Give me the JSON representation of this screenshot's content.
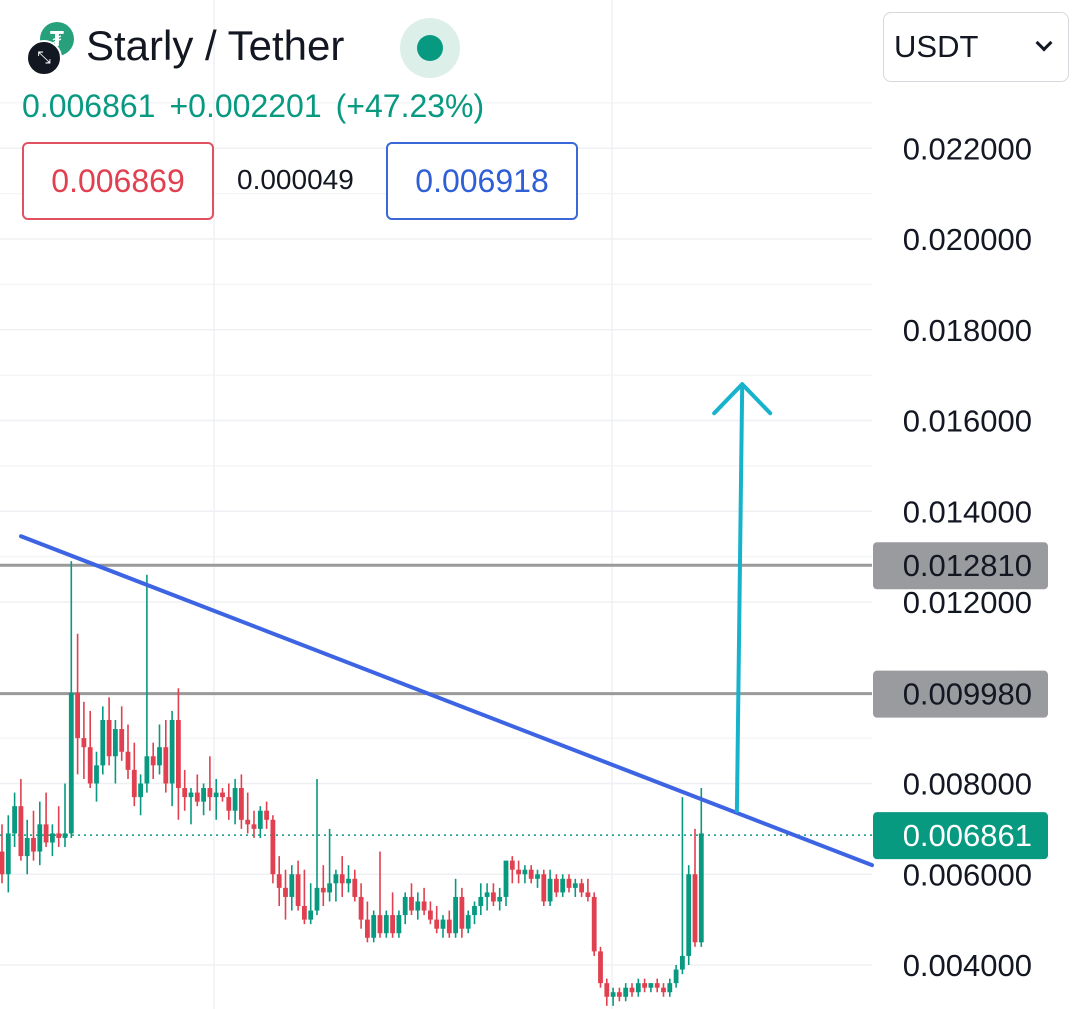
{
  "header": {
    "title": "Starly / Tether",
    "last_price": "0.006861",
    "change_abs": "+0.002201",
    "change_pct": "(+47.23%)",
    "bid": "0.006869",
    "spread": "0.000049",
    "ask": "0.006918",
    "currency": "USDT"
  },
  "colors": {
    "up": "#089981",
    "down": "#e0404f",
    "trendline": "#3d64e3",
    "arrow": "#17b2cc",
    "level": "#9a9a9a"
  },
  "chart_data": {
    "type": "candlestick",
    "y_axis": {
      "min": 0.003,
      "max": 0.0233,
      "ticks": [
        "0.004000",
        "0.006000",
        "0.008000",
        "0.012000",
        "0.014000",
        "0.016000",
        "0.018000",
        "0.020000",
        "0.022000"
      ]
    },
    "horizontal_levels": [
      {
        "label": "0.012810",
        "value": 0.01281
      },
      {
        "label": "0.009980",
        "value": 0.00998
      }
    ],
    "last_price_label": "0.006861",
    "last_price_value": 0.006861,
    "trendline": {
      "from": [
        0,
        0.01345
      ],
      "to": [
        120,
        0.0062
      ]
    },
    "arrow": {
      "from": [
        103,
        0.0074
      ],
      "to": [
        104,
        0.0168
      ]
    },
    "candles": [
      [
        0.0065,
        0.0071,
        0.0058,
        0.006
      ],
      [
        0.006,
        0.0073,
        0.0056,
        0.0069
      ],
      [
        0.0069,
        0.0078,
        0.0066,
        0.0075
      ],
      [
        0.0075,
        0.0081,
        0.0063,
        0.0064
      ],
      [
        0.0064,
        0.0072,
        0.006,
        0.0068
      ],
      [
        0.0068,
        0.0074,
        0.0063,
        0.0065
      ],
      [
        0.0065,
        0.0076,
        0.0062,
        0.0071
      ],
      [
        0.0071,
        0.0078,
        0.0066,
        0.0067
      ],
      [
        0.0067,
        0.0071,
        0.0064,
        0.0069
      ],
      [
        0.0069,
        0.0075,
        0.0066,
        0.0068
      ],
      [
        0.0068,
        0.008,
        0.0066,
        0.0069
      ],
      [
        0.0069,
        0.0129,
        0.0068,
        0.01
      ],
      [
        0.01,
        0.0113,
        0.0082,
        0.009
      ],
      [
        0.009,
        0.0098,
        0.0081,
        0.0088
      ],
      [
        0.0088,
        0.0096,
        0.0079,
        0.008
      ],
      [
        0.008,
        0.0087,
        0.0076,
        0.0084
      ],
      [
        0.0084,
        0.0097,
        0.0082,
        0.0094
      ],
      [
        0.0094,
        0.0099,
        0.0084,
        0.0086
      ],
      [
        0.0086,
        0.0094,
        0.008,
        0.0092
      ],
      [
        0.0092,
        0.0097,
        0.0085,
        0.0087
      ],
      [
        0.0087,
        0.0093,
        0.0081,
        0.0083
      ],
      [
        0.0083,
        0.0089,
        0.0075,
        0.0077
      ],
      [
        0.0077,
        0.0082,
        0.0073,
        0.008
      ],
      [
        0.008,
        0.0126,
        0.0078,
        0.0086
      ],
      [
        0.0086,
        0.0089,
        0.0081,
        0.0084
      ],
      [
        0.0084,
        0.0093,
        0.0082,
        0.0088
      ],
      [
        0.0088,
        0.0094,
        0.0078,
        0.008
      ],
      [
        0.008,
        0.0096,
        0.0075,
        0.0094
      ],
      [
        0.0094,
        0.0101,
        0.0072,
        0.0079
      ],
      [
        0.0079,
        0.0083,
        0.0074,
        0.0077
      ],
      [
        0.0077,
        0.0079,
        0.0071,
        0.0078
      ],
      [
        0.0078,
        0.0082,
        0.0075,
        0.0076
      ],
      [
        0.0076,
        0.008,
        0.0073,
        0.0079
      ],
      [
        0.0079,
        0.0086,
        0.0074,
        0.0077
      ],
      [
        0.0077,
        0.0081,
        0.0072,
        0.0078
      ],
      [
        0.0078,
        0.0079,
        0.0076,
        0.0077
      ],
      [
        0.0077,
        0.008,
        0.0072,
        0.0074
      ],
      [
        0.0074,
        0.0081,
        0.0071,
        0.0079
      ],
      [
        0.0079,
        0.0082,
        0.007,
        0.0072
      ],
      [
        0.0072,
        0.0078,
        0.0069,
        0.0071
      ],
      [
        0.0071,
        0.0074,
        0.0068,
        0.007
      ],
      [
        0.007,
        0.0075,
        0.0068,
        0.0074
      ],
      [
        0.0074,
        0.0076,
        0.007,
        0.0072
      ],
      [
        0.0072,
        0.0073,
        0.0058,
        0.006
      ],
      [
        0.006,
        0.0064,
        0.0053,
        0.0057
      ],
      [
        0.0057,
        0.0061,
        0.005,
        0.0055
      ],
      [
        0.0055,
        0.0062,
        0.0052,
        0.006
      ],
      [
        0.006,
        0.0063,
        0.0052,
        0.0053
      ],
      [
        0.0053,
        0.0061,
        0.0049,
        0.005
      ],
      [
        0.005,
        0.0058,
        0.0049,
        0.0052
      ],
      [
        0.0052,
        0.0081,
        0.0051,
        0.0057
      ],
      [
        0.0057,
        0.0062,
        0.0053,
        0.0056
      ],
      [
        0.0056,
        0.007,
        0.0054,
        0.0058
      ],
      [
        0.0058,
        0.0061,
        0.0054,
        0.006
      ],
      [
        0.006,
        0.0064,
        0.0055,
        0.0058
      ],
      [
        0.0058,
        0.0062,
        0.0056,
        0.0059
      ],
      [
        0.0059,
        0.0061,
        0.0054,
        0.0055
      ],
      [
        0.0055,
        0.0058,
        0.0048,
        0.005
      ],
      [
        0.005,
        0.0054,
        0.0045,
        0.0046
      ],
      [
        0.0046,
        0.0052,
        0.0045,
        0.0051
      ],
      [
        0.0051,
        0.0065,
        0.0046,
        0.0047
      ],
      [
        0.0047,
        0.0052,
        0.0046,
        0.0051
      ],
      [
        0.0051,
        0.0056,
        0.0046,
        0.0047
      ],
      [
        0.0047,
        0.0052,
        0.0046,
        0.0051
      ],
      [
        0.0051,
        0.0056,
        0.0049,
        0.0055
      ],
      [
        0.0055,
        0.0058,
        0.0051,
        0.0052
      ],
      [
        0.0052,
        0.0056,
        0.005,
        0.0054
      ],
      [
        0.0054,
        0.0057,
        0.0051,
        0.0052
      ],
      [
        0.0052,
        0.0054,
        0.0049,
        0.005
      ],
      [
        0.005,
        0.0053,
        0.0047,
        0.0048
      ],
      [
        0.0048,
        0.0051,
        0.0046,
        0.005
      ],
      [
        0.005,
        0.0052,
        0.0046,
        0.0047
      ],
      [
        0.0047,
        0.0059,
        0.0046,
        0.0055
      ],
      [
        0.0055,
        0.0057,
        0.0046,
        0.0048
      ],
      [
        0.0048,
        0.0052,
        0.0047,
        0.0051
      ],
      [
        0.0051,
        0.0054,
        0.0049,
        0.0053
      ],
      [
        0.0053,
        0.0058,
        0.0051,
        0.0055
      ],
      [
        0.0055,
        0.0058,
        0.0052,
        0.0056
      ],
      [
        0.0056,
        0.0058,
        0.0053,
        0.0054
      ],
      [
        0.0054,
        0.0057,
        0.0052,
        0.0055
      ],
      [
        0.0055,
        0.0063,
        0.0053,
        0.0063
      ],
      [
        0.0063,
        0.0064,
        0.0058,
        0.0061
      ],
      [
        0.0061,
        0.0063,
        0.0058,
        0.006
      ],
      [
        0.006,
        0.0062,
        0.0058,
        0.0061
      ],
      [
        0.0061,
        0.0062,
        0.0058,
        0.0059
      ],
      [
        0.0059,
        0.0061,
        0.0057,
        0.006
      ],
      [
        0.006,
        0.0061,
        0.0053,
        0.0054
      ],
      [
        0.0054,
        0.0061,
        0.0053,
        0.0059
      ],
      [
        0.0059,
        0.006,
        0.0055,
        0.0056
      ],
      [
        0.0056,
        0.006,
        0.0055,
        0.0059
      ],
      [
        0.0059,
        0.006,
        0.0056,
        0.0057
      ],
      [
        0.0057,
        0.0059,
        0.0055,
        0.0058
      ],
      [
        0.0058,
        0.0059,
        0.0055,
        0.0056
      ],
      [
        0.0056,
        0.0059,
        0.0054,
        0.0055
      ],
      [
        0.0055,
        0.0056,
        0.0042,
        0.0043
      ],
      [
        0.0043,
        0.0044,
        0.0035,
        0.0036
      ],
      [
        0.0036,
        0.0037,
        0.0031,
        0.0033
      ],
      [
        0.0033,
        0.0035,
        0.0031,
        0.0034
      ],
      [
        0.0034,
        0.0035,
        0.0032,
        0.0033
      ],
      [
        0.0033,
        0.0036,
        0.0032,
        0.0035
      ],
      [
        0.0035,
        0.0036,
        0.0033,
        0.0034
      ],
      [
        0.0034,
        0.0037,
        0.0033,
        0.0036
      ],
      [
        0.0036,
        0.0037,
        0.0034,
        0.0035
      ],
      [
        0.0035,
        0.0036,
        0.0034,
        0.0036
      ],
      [
        0.0036,
        0.0037,
        0.0034,
        0.0035
      ],
      [
        0.0035,
        0.0036,
        0.0033,
        0.0034
      ],
      [
        0.0034,
        0.0037,
        0.0033,
        0.0036
      ],
      [
        0.0036,
        0.004,
        0.0035,
        0.0039
      ],
      [
        0.0039,
        0.0077,
        0.0038,
        0.0042
      ],
      [
        0.0042,
        0.0062,
        0.004,
        0.006
      ],
      [
        0.006,
        0.007,
        0.0044,
        0.0045
      ],
      [
        0.0045,
        0.0079,
        0.0044,
        0.0069
      ]
    ]
  }
}
